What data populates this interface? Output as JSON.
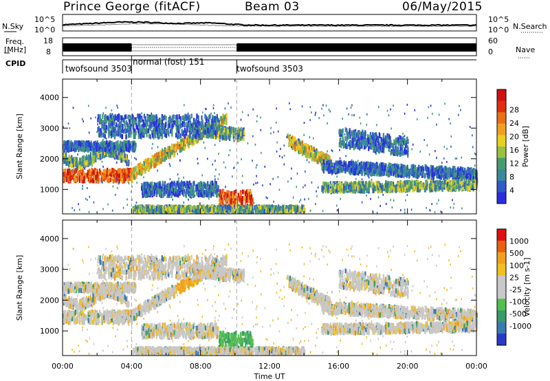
{
  "header": {
    "station": "Prince George (fitACF)",
    "beam": "Beam 03",
    "date": "06/May/2015"
  },
  "summary_panel": {
    "left_top_label": "N.Sky",
    "left_top_ticks": [
      "10^5",
      "10^0"
    ],
    "right_top_label": "N.Search",
    "right_top_ticks": [
      "10^5",
      "10^0"
    ],
    "left_mid_label_1": "Freq.",
    "left_mid_label_2": "[MHz]",
    "left_mid_ticks": [
      "18",
      "8"
    ],
    "right_mid_label": "Nave",
    "right_mid_ticks": [
      "60",
      "0"
    ],
    "cpid_label": "CPID",
    "cpid_segments": [
      {
        "label": "twofsound 3503"
      },
      {
        "label": "normal (fost) 151"
      },
      {
        "label": "twofsound 3503"
      }
    ]
  },
  "chart_data": [
    {
      "type": "heatmap",
      "quantity": "power",
      "ylabel": "Slant Range [km]",
      "yticks": [
        "1000",
        "2000",
        "3000",
        "4000"
      ],
      "ylim": [
        200,
        4600
      ],
      "xlim_hours": [
        0,
        24
      ],
      "colorbar": {
        "label": "Power [dB]",
        "ticks": [
          "4",
          "8",
          "12",
          "16",
          "20",
          "24",
          "28"
        ],
        "colors": [
          "#2b2ee0",
          "#2f5cc8",
          "#3a8a9a",
          "#4a9a70",
          "#9ac040",
          "#e8d020",
          "#f0a020",
          "#e87018",
          "#e03010",
          "#d01010"
        ]
      }
    },
    {
      "type": "heatmap",
      "quantity": "velocity",
      "ylabel": "Slant Range [km]",
      "yticks": [
        "1000",
        "2000",
        "3000",
        "4000"
      ],
      "ylim": [
        200,
        4600
      ],
      "xlim_hours": [
        0,
        24
      ],
      "colorbar": {
        "label": "Velocity [m s-1]",
        "ticks": [
          "1000",
          "500",
          "100",
          "25",
          "-25",
          "-100",
          "-500",
          "-1000"
        ],
        "colors": [
          "#2a3ac8",
          "#3a7ab0",
          "#3a9a6a",
          "#50c050",
          "#c8c8c8",
          "#c8c8c8",
          "#f0c020",
          "#f0a020",
          "#e86010",
          "#e01010"
        ]
      }
    }
  ],
  "xaxis": {
    "label": "Time UT",
    "ticks": [
      "00:00",
      "04:00",
      "08:00",
      "12:00",
      "16:00",
      "20:00",
      "00:00"
    ]
  },
  "colors": {
    "power_bands": [
      "#2b2ee0",
      "#3a8a9a",
      "#9ac040",
      "#f0a020",
      "#e03010"
    ],
    "groundscatter": "#c8c8c8"
  }
}
